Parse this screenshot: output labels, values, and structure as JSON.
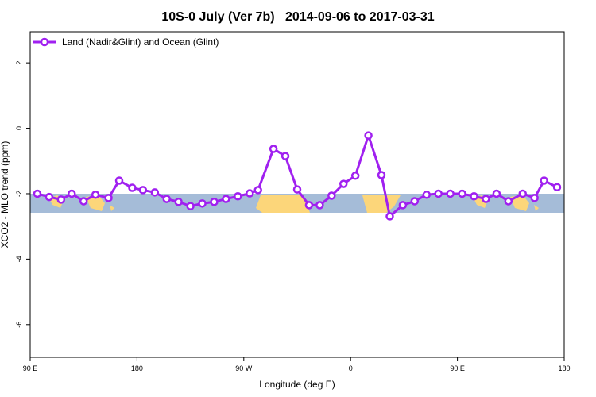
{
  "chart_data": {
    "type": "line",
    "title": "10S-0 July (Ver 7b)   2014-09-06 to 2017-03-31",
    "xlabel": "Longitude (deg E)",
    "ylabel": "XCO2 - MLO trend (ppm)",
    "xlim": [
      90,
      540
    ],
    "ylim": [
      -7.0,
      2.95
    ],
    "xticks": [
      {
        "value": 90,
        "label": "90 E"
      },
      {
        "value": 180,
        "label": "180"
      },
      {
        "value": 270,
        "label": "90 W"
      },
      {
        "value": 360,
        "label": "0"
      },
      {
        "value": 450,
        "label": "90 E"
      },
      {
        "value": 540,
        "label": "180"
      }
    ],
    "yticks": [
      2,
      0,
      -2,
      -4,
      -6
    ],
    "legend": "top-left",
    "series": [
      {
        "name": "Land (Nadir&Glint) and Ocean (Glint)",
        "color": "#a020f0",
        "x": [
          96,
          106,
          116,
          125,
          135,
          145,
          156,
          165,
          176,
          185,
          195,
          205,
          215,
          225,
          235,
          245,
          255,
          265,
          275,
          282,
          295,
          305,
          315,
          325,
          334,
          344,
          354,
          364,
          375,
          386,
          393,
          404,
          414,
          424,
          434,
          444,
          454,
          464,
          474,
          483,
          493,
          505,
          515,
          523,
          534
        ],
        "values": [
          -2.0,
          -2.1,
          -2.18,
          -2.0,
          -2.23,
          -2.03,
          -2.13,
          -1.6,
          -1.82,
          -1.89,
          -1.96,
          -2.16,
          -2.25,
          -2.38,
          -2.3,
          -2.25,
          -2.16,
          -2.08,
          -1.99,
          -1.89,
          -0.63,
          -0.85,
          -1.87,
          -2.35,
          -2.35,
          -2.06,
          -1.7,
          -1.45,
          -0.22,
          -1.43,
          -2.69,
          -2.35,
          -2.23,
          -2.03,
          -2.0,
          -2.0,
          -2.0,
          -2.08,
          -2.16,
          -2.0,
          -2.23,
          -2.0,
          -2.13,
          -1.6,
          -1.8
        ]
      }
    ]
  }
}
